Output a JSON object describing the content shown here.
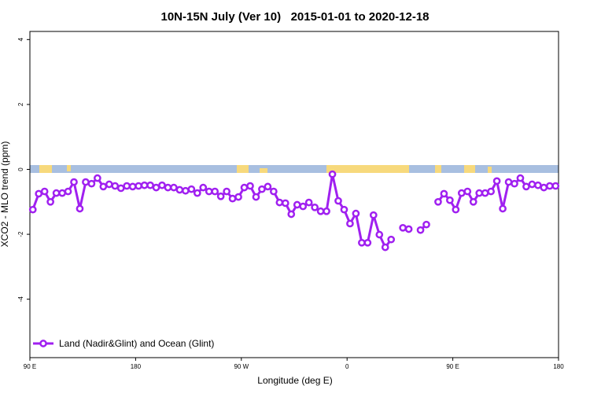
{
  "chart_data": {
    "type": "line",
    "title": "10N-15N July (Ver 10)   2015-01-01 to 2020-12-18",
    "xlabel": "Longitude (deg E)",
    "ylabel": "XCO2 - MLO trend (ppm)",
    "xlim": [
      90,
      540
    ],
    "xticks": [
      {
        "value": 90,
        "label": "90 E"
      },
      180,
      {
        "value": 270,
        "label": "90 W"
      },
      {
        "value": 360,
        "label": "0"
      },
      {
        "value": 450,
        "label": "90 E"
      },
      {
        "value": 540,
        "label": "180"
      }
    ],
    "ylim": [
      -5.8,
      4.25
    ],
    "yticks": [
      -4,
      -2,
      0,
      2,
      4
    ],
    "legend_position": "bottom-left",
    "x": [
      92.5,
      97.5,
      102.5,
      107.5,
      112.5,
      117.5,
      122.5,
      127.5,
      132.5,
      137.5,
      142.5,
      147.5,
      152.5,
      157.5,
      162.5,
      167.5,
      172.5,
      177.5,
      182.5,
      187.5,
      192.5,
      197.5,
      202.5,
      207.5,
      212.5,
      217.5,
      222.5,
      227.5,
      232.5,
      237.5,
      242.5,
      247.5,
      252.5,
      257.5,
      262.5,
      267.5,
      272.5,
      277.5,
      282.5,
      287.5,
      292.5,
      297.5,
      302.5,
      307.5,
      312.5,
      317.5,
      322.5,
      327.5,
      332.5,
      337.5,
      342.5,
      347.5,
      352.5,
      357.5,
      362.5,
      367.5,
      372.5,
      377.5,
      382.5,
      387.5,
      392.5,
      397.5,
      402.5,
      407.5,
      412.5,
      417.5,
      422.5,
      427.5,
      432.5,
      437.5,
      442.5,
      447.5,
      452.5,
      457.5,
      462.5,
      467.5,
      472.5,
      477.5,
      482.5,
      487.5,
      492.5,
      497.5,
      502.5,
      507.5,
      512.5,
      517.5,
      522.5,
      527.5,
      532.5,
      537.5
    ],
    "series": [
      {
        "name": "Land (Nadir&Glint) and Ocean (Glint)",
        "color": "#a020f0",
        "values": [
          -1.24,
          -0.75,
          -0.68,
          -1.0,
          -0.73,
          -0.73,
          -0.68,
          -0.39,
          -1.21,
          -0.39,
          -0.44,
          -0.27,
          -0.53,
          -0.46,
          -0.51,
          -0.58,
          -0.51,
          -0.53,
          -0.51,
          -0.49,
          -0.49,
          -0.56,
          -0.49,
          -0.56,
          -0.56,
          -0.63,
          -0.66,
          -0.61,
          -0.73,
          -0.56,
          -0.68,
          -0.68,
          -0.83,
          -0.68,
          -0.9,
          -0.85,
          -0.56,
          -0.51,
          -0.85,
          -0.61,
          -0.53,
          -0.68,
          -1.02,
          -1.04,
          -1.38,
          -1.09,
          -1.14,
          -1.02,
          -1.17,
          -1.29,
          -1.29,
          -0.15,
          -0.97,
          -1.24,
          -1.67,
          -1.36,
          -2.26,
          -2.26,
          -1.41,
          -2.01,
          -2.4,
          -2.16,
          null,
          -1.8,
          -1.84,
          null,
          -1.87,
          -1.7,
          null,
          -1.0,
          -0.75,
          -0.95,
          -1.24,
          -0.73,
          -0.68,
          -1.0,
          -0.73,
          -0.73,
          -0.68,
          -0.36,
          -1.21,
          -0.39,
          -0.44,
          -0.27,
          -0.53,
          -0.46,
          -0.49,
          -0.56,
          -0.51,
          -0.51
        ]
      }
    ]
  }
}
